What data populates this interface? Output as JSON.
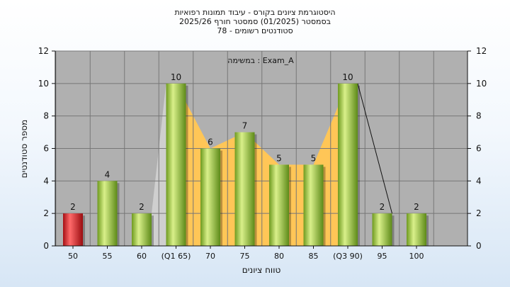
{
  "title_lines": [
    "היסטוגרמת ציונים בקורס - עיבוד תמונות רפואיות",
    "בסמסטר  (01/2025)  סמסטר חורף 2025/26",
    "סטודנטים רשומים - 78"
  ],
  "chart_data": {
    "type": "bar",
    "categories": [
      "50",
      "55",
      "60",
      "(Q1 65)",
      "70",
      "75",
      "80",
      "85",
      "(Q3 90)",
      "95",
      "100"
    ],
    "values": [
      2,
      4,
      2,
      10,
      6,
      7,
      5,
      5,
      10,
      2,
      2
    ],
    "ylabel": "מספר סטודנטים",
    "xlabel": "טווח ציונים",
    "ylim": [
      0,
      12
    ],
    "yticks": [
      0,
      2,
      4,
      6,
      8,
      10,
      12
    ],
    "annotation": "במשימה : Exam_A",
    "highlight_index": 0,
    "colors": {
      "bar": "#9ac53e",
      "bar_highlight": "#d8262b",
      "iqr_band": "#ffc657",
      "tail_band": "#cfcfcf",
      "plot_bg": "#b0b0b0",
      "grid": "#777777"
    }
  }
}
